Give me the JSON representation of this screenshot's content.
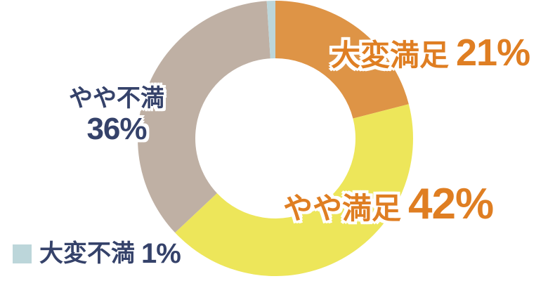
{
  "chart_data": {
    "type": "pie",
    "subtype": "donut",
    "categories": [
      "大変満足",
      "やや満足",
      "やや不満",
      "大変不満"
    ],
    "values": [
      21,
      42,
      36,
      1
    ],
    "unit": "%",
    "slice_ids": [
      "very-satisfied",
      "somewhat-satisfied",
      "somewhat-dissatisfied",
      "very-dissatisfied"
    ],
    "slice_colors": [
      "#DE9446",
      "#EDE65A",
      "#BFB0A4",
      "#BCD6DA"
    ],
    "start_angle": "12-oclock",
    "direction": "clockwise",
    "inner_radius_ratio": 0.58,
    "grid": "off",
    "legend_position": "bottom-left",
    "labels_on_chart": [
      {
        "text": "大変満足",
        "value": "21%",
        "color": "#DF7E22",
        "position": "upper-right"
      },
      {
        "text": "やや満足",
        "value": "42%",
        "color": "#DF7E22",
        "position": "lower-right"
      },
      {
        "text": "やや不満",
        "value": "36%",
        "color": "#35426A",
        "position": "left"
      },
      {
        "text": "大変不満",
        "value": "1%",
        "color": "#35426A",
        "position": "legend-bottom-left",
        "swatch_color": "#BCD6DA"
      }
    ]
  },
  "colors": {
    "background": "#FFFFFF",
    "orange_text": "#DF7E22",
    "navy_text": "#35426A"
  }
}
